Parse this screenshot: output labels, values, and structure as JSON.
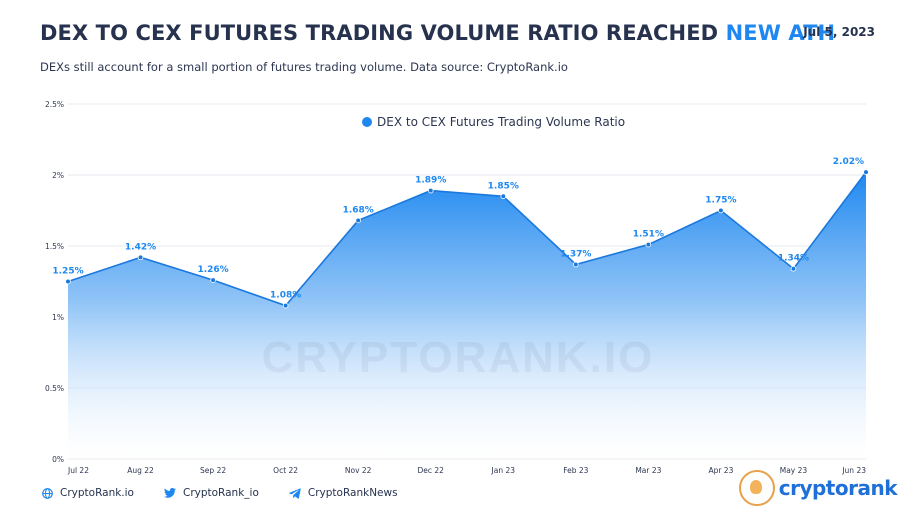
{
  "header": {
    "title_main": "DEX TO CEX FUTURES TRADING VOLUME RATIO REACHED",
    "title_accent": "NEW ATH",
    "date": "Jul 5, 2023",
    "subtitle": "DEXs still account for a small portion of futures trading volume. Data source: CryptoRank.io"
  },
  "watermark": "CRYPTORANK.IO",
  "footer": {
    "website": "CryptoRank.io",
    "twitter": "CryptoRank_io",
    "telegram": "CryptoRankNews"
  },
  "brand": {
    "text": "cryptorank"
  },
  "colors": {
    "accent": "#1e88f0",
    "series": "#1e88f0",
    "title": "#26324e"
  },
  "chart_data": {
    "type": "area",
    "title": "DEX TO CEX FUTURES TRADING VOLUME RATIO REACHED NEW ATH",
    "xlabel": "",
    "ylabel": "",
    "categories": [
      "Jul 22",
      "Aug 22",
      "Sep 22",
      "Oct 22",
      "Nov 22",
      "Dec 22",
      "Jan 23",
      "Feb 23",
      "Mar 23",
      "Apr 23",
      "May 23",
      "Jun 23"
    ],
    "series": [
      {
        "name": "DEX to CEX Futures Trading Volume Ratio",
        "values": [
          1.25,
          1.42,
          1.26,
          1.08,
          1.68,
          1.89,
          1.85,
          1.37,
          1.51,
          1.75,
          1.34,
          2.02
        ],
        "labels": [
          "1.25%",
          "1.42%",
          "1.26%",
          "1.08%",
          "1.68%",
          "1.89%",
          "1.85%",
          "1.37%",
          "1.51%",
          "1.75%",
          "1.34%",
          "2.02%"
        ]
      }
    ],
    "yticks": [
      0,
      0.5,
      1,
      1.5,
      2,
      2.5
    ],
    "ytick_labels": [
      "0%",
      "0.5%",
      "1%",
      "1.5%",
      "2%",
      "2.5%"
    ],
    "ylim": [
      0,
      2.5
    ],
    "grid": true,
    "legend": "top-center"
  }
}
